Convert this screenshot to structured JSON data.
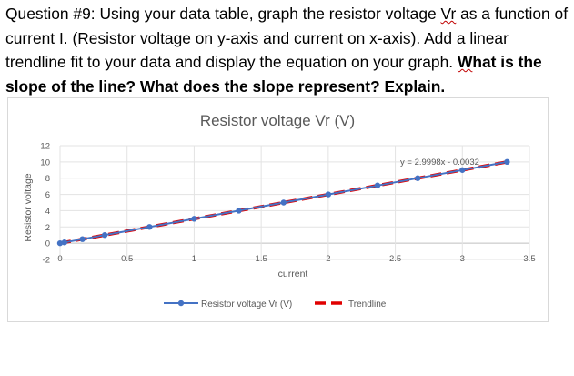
{
  "question": {
    "part1": "Question #9: Using your data table, graph the resistor voltage ",
    "vr": "Vr",
    "part2": " as a function of current I. (Resistor voltage on y-axis and current on x-axis). Add a linear trendline fit to your data and display the equation on your graph. ",
    "bold_w": "W",
    "bold_rest": "hat is the slope of the line? What does the slope represent? Explain."
  },
  "chart_data": {
    "type": "scatter",
    "title": "Resistor voltage Vr (V)",
    "xlabel": "current",
    "ylabel": "Resistor voltage",
    "xlim": [
      0,
      3.5
    ],
    "ylim": [
      -2,
      12
    ],
    "xticks": [
      "0",
      "0.5",
      "1",
      "1.5",
      "2",
      "2.5",
      "3",
      "3.5"
    ],
    "yticks": [
      "-2",
      "0",
      "2",
      "4",
      "6",
      "8",
      "10",
      "12"
    ],
    "grid": true,
    "legend_position": "bottom",
    "series": [
      {
        "name": "Resistor voltage Vr (V)",
        "color": "#4472c4",
        "x": [
          0,
          0.033,
          0.167,
          0.333,
          0.667,
          1.0,
          1.333,
          1.667,
          2.0,
          2.367,
          2.667,
          3.0,
          3.333
        ],
        "y": [
          0,
          0.1,
          0.5,
          1.0,
          2.0,
          3.0,
          4.0,
          5.0,
          6.0,
          7.1,
          8.0,
          9.0,
          10.0
        ]
      }
    ],
    "trendline": {
      "name": "Trendline",
      "color": "#e00000",
      "slope": 2.9998,
      "intercept": -0.0032,
      "x_range": [
        0,
        3.333
      ],
      "equation": "y = 2.9998x - 0.0032"
    }
  }
}
